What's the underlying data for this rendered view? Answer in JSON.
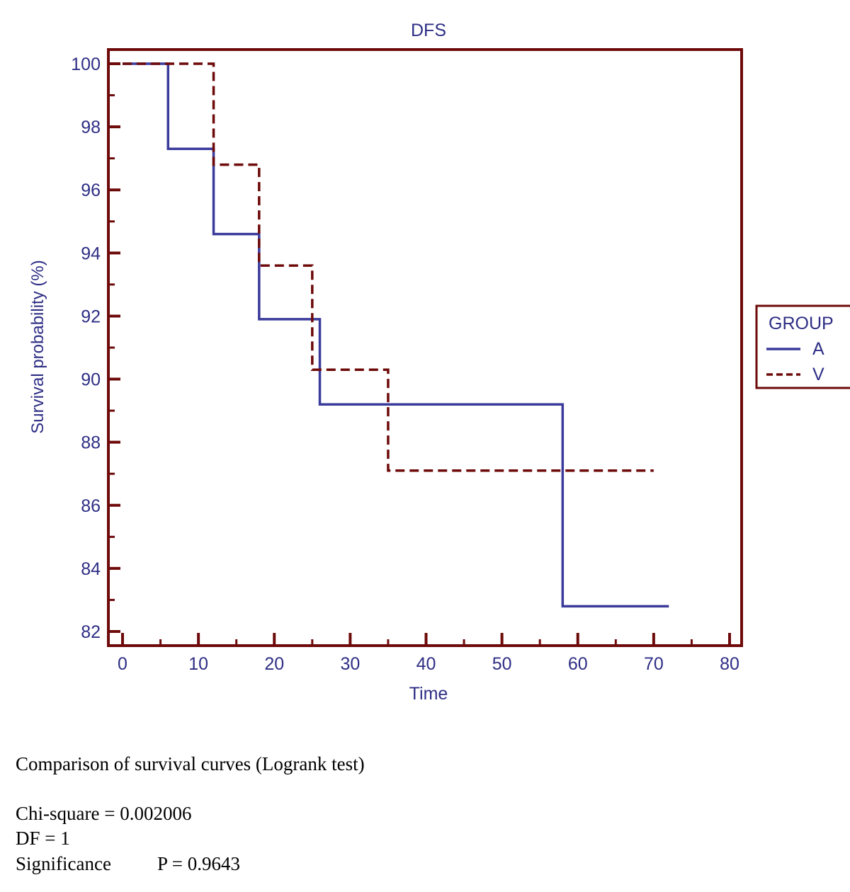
{
  "chart_data": {
    "type": "line",
    "step": true,
    "title": "DFS",
    "xlabel": "Time",
    "ylabel": "Survival probability (%)",
    "xlim": [
      0,
      80
    ],
    "ylim": [
      82,
      100
    ],
    "xticks": [
      0,
      10,
      20,
      30,
      40,
      50,
      60,
      70,
      80
    ],
    "yticks": [
      82,
      84,
      86,
      88,
      90,
      92,
      94,
      96,
      98,
      100
    ],
    "grid": false,
    "legend": {
      "title": "GROUP",
      "placement": "right"
    },
    "series": [
      {
        "name": "A",
        "style": "solid",
        "color": "#3b3b9c",
        "x": [
          0,
          6,
          12,
          18,
          26,
          58,
          72
        ],
        "y": [
          100,
          97.3,
          94.6,
          91.9,
          89.2,
          82.8,
          82.8
        ]
      },
      {
        "name": "V",
        "style": "dashed",
        "color": "#6e0a0a",
        "x": [
          0,
          12,
          18,
          25,
          35,
          70
        ],
        "y": [
          100,
          96.8,
          93.6,
          90.3,
          87.1,
          87.1
        ]
      }
    ],
    "axis_color": "#6e0a0a",
    "label_color": "#2e2e85"
  },
  "stats": {
    "heading": "Comparison of survival curves (Logrank test)",
    "chi_square": "Chi-square = 0.002006",
    "df": "DF = 1",
    "significance_label": "Significance",
    "p_value": "P = 0.9643"
  }
}
